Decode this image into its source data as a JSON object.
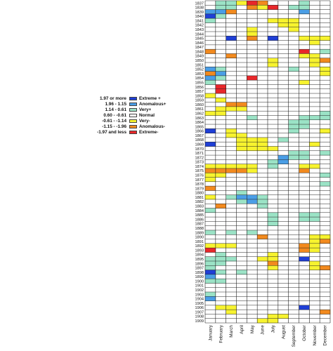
{
  "chart_data": {
    "type": "heatmap",
    "title": "",
    "xlabel": "",
    "ylabel": "",
    "months": [
      "January",
      "February",
      "March",
      "April",
      "May",
      "June",
      "July",
      "August",
      "September",
      "October",
      "November",
      "December"
    ],
    "years": [
      "1837",
      "1838",
      "1839",
      "1840",
      "1841",
      "1842",
      "1843",
      "1844",
      "1845",
      "1846",
      "1847",
      "1848",
      "1849",
      "1850",
      "1851",
      "1852",
      "1853",
      "1854",
      "1855",
      "1856",
      "1857",
      "1858",
      "1859",
      "1860",
      "1861",
      "1862",
      "1863",
      "1864",
      "1865",
      "1866",
      "1867",
      "1868",
      "1869",
      "1870",
      "1871",
      "1872",
      "1873",
      "1874",
      "1875",
      "1876",
      "1877",
      "1878",
      "1879",
      "1880",
      "1881",
      "1882",
      "1883",
      "1884",
      "1885",
      "1886",
      "1887",
      "1888",
      "1889",
      "1890",
      "1891",
      "1892",
      "1893",
      "1894",
      "1895",
      "1896",
      "1897",
      "1898",
      "1899",
      "1900",
      "1901",
      "1902",
      "1903",
      "1904",
      "1905",
      "1906",
      "1907",
      "1908",
      "1909"
    ],
    "legend": [
      {
        "range": "1.97 or more",
        "label": "Extreme +",
        "color": "#1f3fd6"
      },
      {
        "range": "1.96 - 1.15",
        "label": "Anomalous+",
        "color": "#4a9ee6"
      },
      {
        "range": "1.14 - 0.61",
        "label": "Very+",
        "color": "#9be3c6"
      },
      {
        "range": "0.60 - -0.61",
        "label": "Normal",
        "color": "#ffffff"
      },
      {
        "range": "-0.61 - -1.14",
        "label": "Very-",
        "color": "#f7f32f"
      },
      {
        "range": "-1.15 - -1.96",
        "label": "Anomalous-",
        "color": "#f28a1e"
      },
      {
        "range": "-1.97 and less",
        "label": "Extreme-",
        "color": "#e8272a"
      }
    ],
    "grid": true,
    "legend_placement": "left",
    "highlights": [
      {
        "year": "1838",
        "month": "July",
        "class": -3
      },
      {
        "year": "1839",
        "month": "March",
        "class": -2
      },
      {
        "year": "1845",
        "month": "March",
        "class": 3
      },
      {
        "year": "1845",
        "month": "July",
        "class": 3
      },
      {
        "year": "1848",
        "month": "January",
        "class": -2
      },
      {
        "year": "1848",
        "month": "October",
        "class": -3
      },
      {
        "year": "1849",
        "month": "March",
        "class": -2
      },
      {
        "year": "1853",
        "month": "January",
        "class": -2
      },
      {
        "year": "1854",
        "month": "May",
        "class": -3
      },
      {
        "year": "1856",
        "month": "February",
        "class": -3
      },
      {
        "year": "1857",
        "month": "February",
        "class": -3
      },
      {
        "year": "1866",
        "month": "January",
        "class": 3
      },
      {
        "year": "1869",
        "month": "January",
        "class": 3
      },
      {
        "year": "1879",
        "month": "January",
        "class": -2
      },
      {
        "year": "1883",
        "month": "February",
        "class": -2
      },
      {
        "year": "1890",
        "month": "June",
        "class": -2
      },
      {
        "year": "1893",
        "month": "January",
        "class": -3
      },
      {
        "year": "1895",
        "month": "October",
        "class": 3
      },
      {
        "year": "1898",
        "month": "January",
        "class": 3
      },
      {
        "year": "1906",
        "month": "October",
        "class": 3
      },
      {
        "year": "1907",
        "month": "December",
        "class": -2
      }
    ]
  }
}
